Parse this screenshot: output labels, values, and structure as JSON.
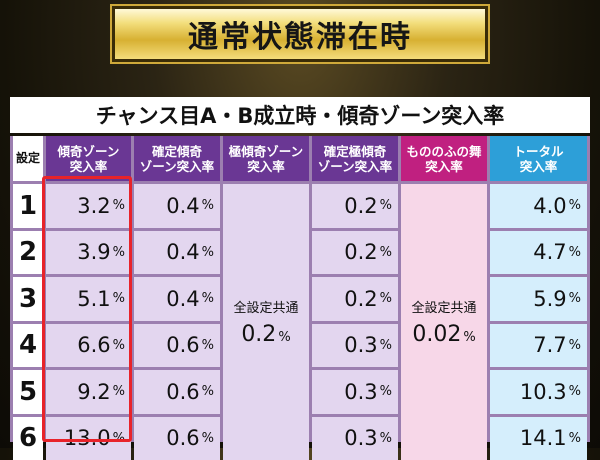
{
  "title": "通常状態滞在時",
  "subtitle": "チャンス目A・B成立時・傾奇ゾーン突入率",
  "headers": {
    "setting": "設定",
    "col1": [
      "傾奇ゾーン",
      "突入率"
    ],
    "col2": [
      "確定傾奇",
      "ゾーン突入率"
    ],
    "col3": [
      "極傾奇ゾーン",
      "突入率"
    ],
    "col4": [
      "確定極傾奇",
      "ゾーン突入率"
    ],
    "col5": [
      "もののふの舞",
      "突入率"
    ],
    "col6": [
      "トータル",
      "突入率"
    ]
  },
  "settings": [
    "1",
    "2",
    "3",
    "4",
    "5",
    "6"
  ],
  "unit": "%",
  "col1_values": [
    "3.2",
    "3.9",
    "5.1",
    "6.6",
    "9.2",
    "13.0"
  ],
  "col2_values": [
    "0.4",
    "0.4",
    "0.4",
    "0.6",
    "0.6",
    "0.6"
  ],
  "col3_merged": {
    "label": "全設定共通",
    "value": "0.2"
  },
  "col4_values": [
    "0.2",
    "0.2",
    "0.2",
    "0.3",
    "0.3",
    "0.3"
  ],
  "col5_merged": {
    "label": "全設定共通",
    "value": "0.02"
  },
  "col6_values": [
    "4.0",
    "4.7",
    "5.9",
    "7.7",
    "10.3",
    "14.1"
  ],
  "colors": {
    "header_purple": "#6a3794",
    "header_magenta": "#c02080",
    "header_blue": "#2d9fd8",
    "highlight_border": "#e8232a"
  }
}
